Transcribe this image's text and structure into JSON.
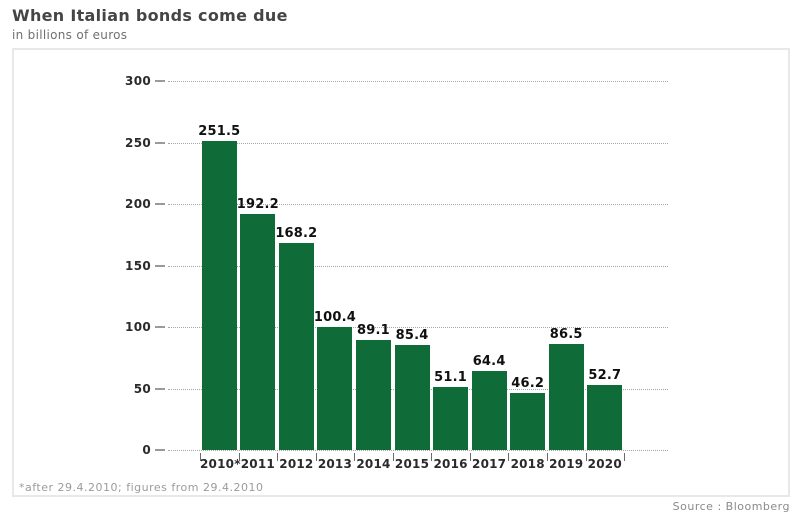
{
  "header": {
    "title": "When Italian bonds come due",
    "subtitle": "in billions of euros"
  },
  "footer": {
    "footnote": "*after 29.4.2010; figures from 29.4.2010",
    "source": "Source : Bloomberg"
  },
  "colors": {
    "bar": "#0f6b38",
    "grid": "#a6a6a6",
    "frame_border": "#e8e8e8"
  },
  "chart_data": {
    "type": "bar",
    "title": "When Italian bonds come due",
    "subtitle": "in billions of euros",
    "unit": "billions of euros",
    "categories": [
      "2010*",
      "2011",
      "2012",
      "2013",
      "2014",
      "2015",
      "2016",
      "2017",
      "2018",
      "2019",
      "2020"
    ],
    "values": [
      251.5,
      192.2,
      168.2,
      100.4,
      89.1,
      85.4,
      51.1,
      64.4,
      46.2,
      86.5,
      52.7
    ],
    "ylim": [
      0,
      300
    ],
    "yticks": [
      0,
      50,
      100,
      150,
      200,
      250,
      300
    ],
    "grid": "horizontal-dotted",
    "legend": "none",
    "bar_color": "#0f6b38",
    "footnote": "*after 29.4.2010; figures from 29.4.2010",
    "source": "Source : Bloomberg"
  }
}
